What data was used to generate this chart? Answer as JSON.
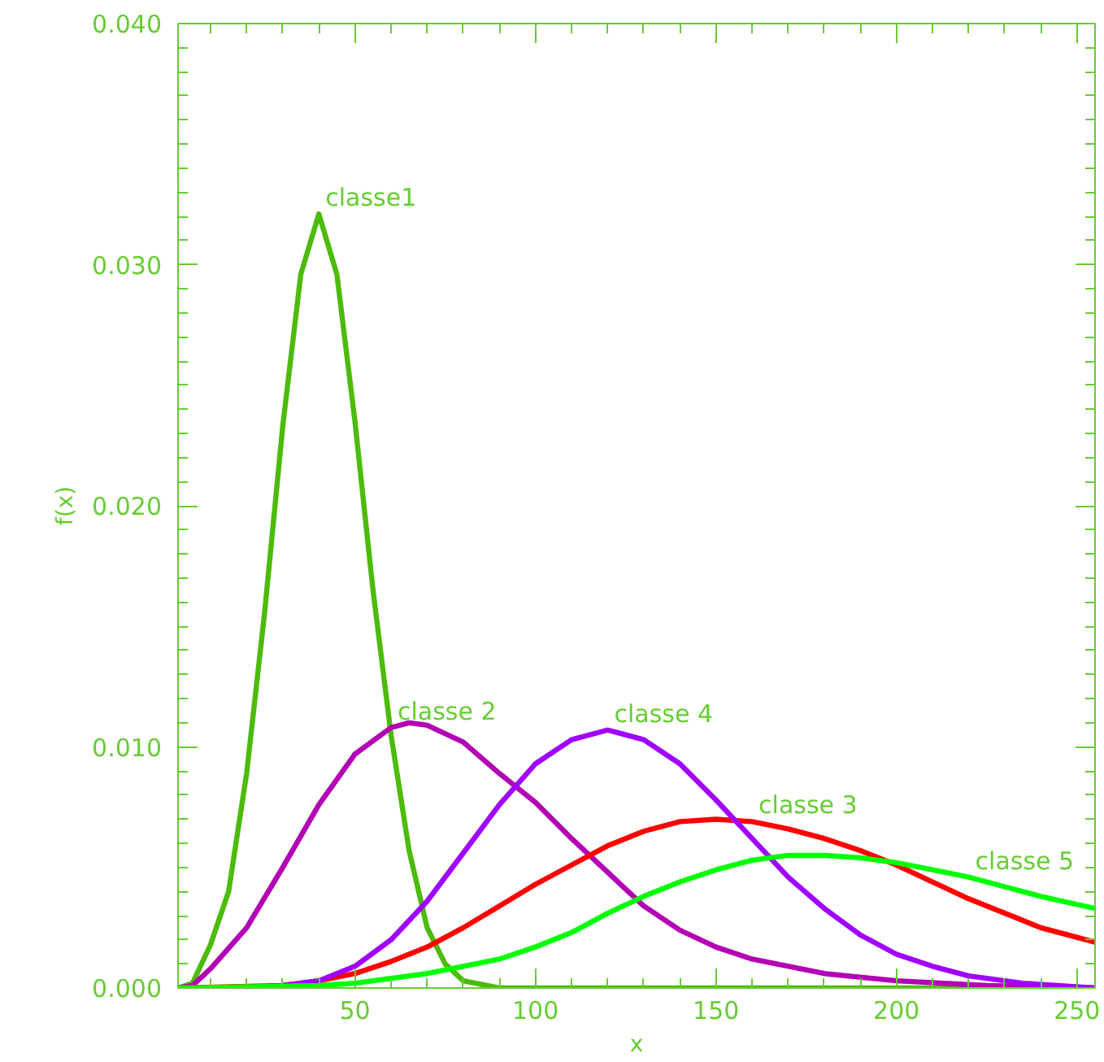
{
  "chart_data": {
    "type": "line",
    "xlabel": "x",
    "ylabel": "f(x)",
    "xlim": [
      1,
      255
    ],
    "ylim": [
      0,
      0.04
    ],
    "xticks": [
      50,
      100,
      150,
      200,
      250
    ],
    "yticks": [
      {
        "value": 0,
        "label": "0.000"
      },
      {
        "value": 0.01,
        "label": "0.010"
      },
      {
        "value": 0.02,
        "label": "0.020"
      },
      {
        "value": 0.03,
        "label": "0.030"
      },
      {
        "value": 0.04,
        "label": "0.040"
      }
    ],
    "grid": false,
    "marker": "none",
    "line_style": "solid",
    "series": [
      {
        "color": "#4cbb0a",
        "x": [
          1,
          5,
          10,
          15,
          20,
          25,
          30,
          35,
          40,
          45,
          50,
          55,
          60,
          65,
          70,
          75,
          80,
          90,
          100,
          150,
          200,
          255
        ],
        "values": [
          0,
          0.0002,
          0.0018,
          0.004,
          0.0089,
          0.0156,
          0.0233,
          0.0296,
          0.0321,
          0.0296,
          0.0235,
          0.0165,
          0.0105,
          0.0057,
          0.0025,
          0.001,
          0.0003,
          0,
          0,
          0,
          0,
          0
        ]
      },
      {
        "color": "#b400b4",
        "x": [
          1,
          5,
          10,
          20,
          30,
          40,
          50,
          60,
          65,
          70,
          80,
          90,
          100,
          110,
          120,
          130,
          140,
          150,
          160,
          180,
          200,
          225,
          255
        ],
        "values": [
          0,
          0.0001,
          0.0008,
          0.0025,
          0.005,
          0.0076,
          0.0097,
          0.0108,
          0.011,
          0.0109,
          0.0102,
          0.0089,
          0.0077,
          0.0062,
          0.0048,
          0.0034,
          0.0024,
          0.0017,
          0.0012,
          0.0006,
          0.0003,
          0.0001,
          0
        ]
      },
      {
        "color": "#ff0000",
        "x": [
          1,
          30,
          40,
          50,
          60,
          70,
          80,
          90,
          100,
          110,
          120,
          130,
          140,
          150,
          160,
          170,
          180,
          190,
          200,
          210,
          220,
          230,
          240,
          255
        ],
        "values": [
          0,
          0.0001,
          0.0003,
          0.0006,
          0.0011,
          0.0017,
          0.0025,
          0.0034,
          0.0043,
          0.0051,
          0.0059,
          0.0065,
          0.0069,
          0.007,
          0.0069,
          0.0066,
          0.0062,
          0.0057,
          0.0051,
          0.0044,
          0.0037,
          0.0031,
          0.0025,
          0.0019
        ]
      },
      {
        "color": "#a000ff",
        "x": [
          1,
          20,
          30,
          40,
          50,
          60,
          70,
          80,
          90,
          100,
          110,
          120,
          130,
          140,
          150,
          160,
          170,
          180,
          190,
          200,
          210,
          220,
          235,
          255
        ],
        "values": [
          0,
          0,
          0.0001,
          0.0003,
          0.0009,
          0.002,
          0.0036,
          0.0056,
          0.0076,
          0.0093,
          0.0103,
          0.0107,
          0.0103,
          0.0093,
          0.0078,
          0.0062,
          0.0046,
          0.0033,
          0.0022,
          0.0014,
          0.0009,
          0.0005,
          0.0002,
          0
        ]
      },
      {
        "color": "#00ff00",
        "x": [
          1,
          40,
          50,
          60,
          70,
          80,
          90,
          100,
          110,
          120,
          130,
          140,
          150,
          160,
          170,
          180,
          190,
          200,
          210,
          220,
          230,
          240,
          255
        ],
        "values": [
          0,
          0.0001,
          0.0002,
          0.0004,
          0.0006,
          0.0009,
          0.0012,
          0.0017,
          0.0023,
          0.0031,
          0.0038,
          0.0044,
          0.0049,
          0.0053,
          0.0055,
          0.0055,
          0.0054,
          0.0052,
          0.0049,
          0.0046,
          0.0042,
          0.0038,
          0.0033
        ]
      }
    ],
    "annotations": [
      {
        "text": "classe1",
        "x": 40,
        "y": 0.0321
      },
      {
        "text": "classe 2",
        "x": 60,
        "y": 0.0108
      },
      {
        "text": "classe 4",
        "x": 120,
        "y": 0.0107
      },
      {
        "text": "classe 3",
        "x": 160,
        "y": 0.0069
      },
      {
        "text": "classe 5",
        "x": 220,
        "y": 0.0046
      }
    ]
  }
}
